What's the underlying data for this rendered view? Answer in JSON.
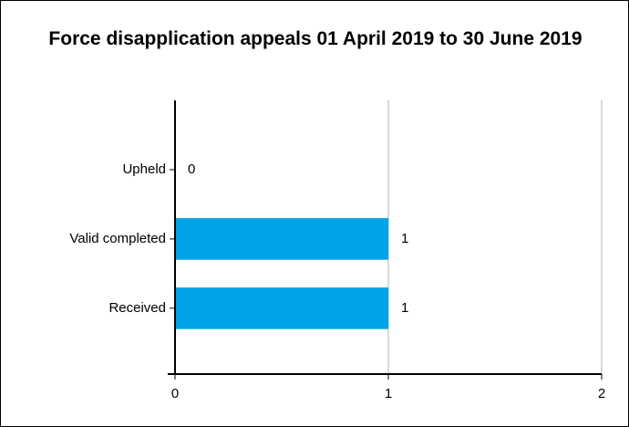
{
  "chart_data": {
    "type": "bar",
    "orientation": "horizontal",
    "title": "Force disapplication appeals 01 April 2019 to 30 June 2019",
    "categories": [
      "Upheld",
      "Valid completed",
      "Received"
    ],
    "values": [
      0,
      1,
      1
    ],
    "color": "#00a2e8",
    "xlim": [
      0,
      2
    ],
    "xticks": [
      0,
      1,
      2
    ],
    "grid": true
  }
}
